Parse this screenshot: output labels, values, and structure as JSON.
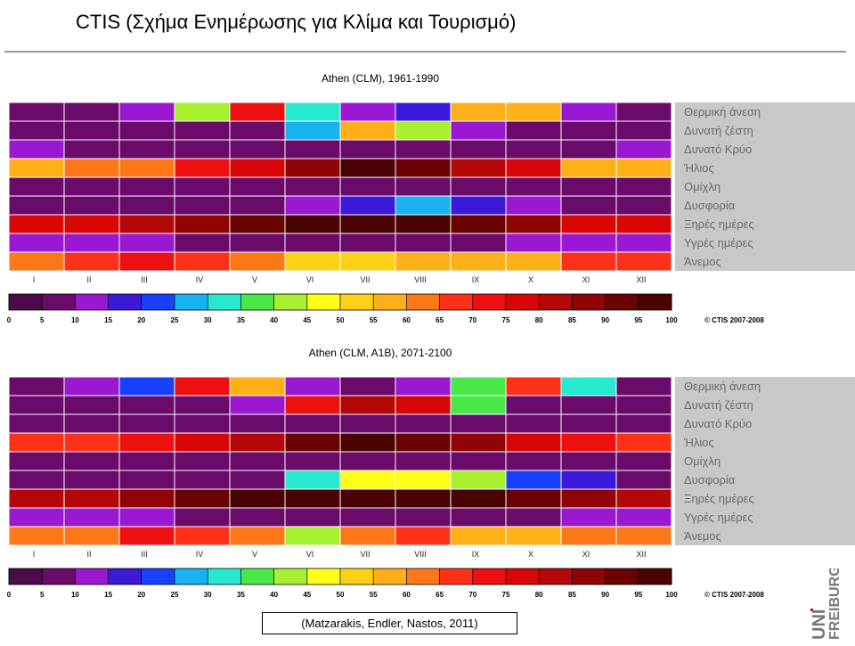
{
  "page": {
    "title": "CTIS (Σχήμα Ενημέρωσης για Κλίμα και Τουρισμό)",
    "citation": "(Matzarakis, Endler, Nastos, 2011)",
    "logo": {
      "top": "UNI",
      "bottom": "FREIBURG"
    }
  },
  "colors": {
    "scale": [
      "#4b0b4b",
      "#6a0a6a",
      "#9a18d2",
      "#3a1ad8",
      "#1840ff",
      "#18b2f0",
      "#28e8d0",
      "#48e848",
      "#a8f030",
      "#ffff18",
      "#ffd018",
      "#ffb018",
      "#ff7818",
      "#ff3018",
      "#ee1010",
      "#d80606",
      "#b40808",
      "#900404",
      "#6a0202",
      "#4a0202"
    ],
    "label_panel": "#c8c8c8",
    "label_text": "#6a6a6a"
  },
  "chart_data": [
    {
      "type": "heatmap",
      "title": "Athen (CLM), 1961-1990",
      "categories": [
        "I",
        "II",
        "III",
        "IV",
        "V",
        "VI",
        "VII",
        "VIII",
        "IX",
        "X",
        "XI",
        "XII"
      ],
      "rows": [
        "Θερμική άνεση",
        "Δυνατή ζέστη",
        "Δυνατό Κρύο",
        "Ήλιος",
        "Ομίχλη",
        "Δυσφορία",
        "Ξηρές ημέρες",
        "Υγρές ημέρες",
        "Άνεμος"
      ],
      "values": [
        [
          5,
          5,
          12,
          42,
          72,
          32,
          12,
          17,
          57,
          57,
          12,
          5
        ],
        [
          5,
          5,
          5,
          5,
          5,
          27,
          57,
          42,
          12,
          5,
          5,
          5
        ],
        [
          12,
          5,
          5,
          5,
          5,
          5,
          5,
          5,
          5,
          5,
          5,
          12
        ],
        [
          57,
          62,
          62,
          72,
          77,
          87,
          97,
          92,
          82,
          77,
          57,
          57
        ],
        [
          7,
          7,
          7,
          7,
          7,
          7,
          7,
          7,
          7,
          7,
          7,
          7
        ],
        [
          5,
          5,
          5,
          5,
          5,
          12,
          17,
          27,
          17,
          12,
          5,
          5
        ],
        [
          77,
          77,
          82,
          87,
          92,
          97,
          97,
          97,
          92,
          87,
          77,
          77
        ],
        [
          12,
          12,
          12,
          5,
          5,
          5,
          5,
          5,
          5,
          12,
          12,
          12
        ],
        [
          62,
          67,
          72,
          67,
          62,
          52,
          52,
          57,
          57,
          57,
          67,
          67
        ]
      ],
      "colorbar": {
        "ticks": [
          0,
          5,
          10,
          15,
          20,
          25,
          30,
          35,
          40,
          45,
          50,
          55,
          60,
          65,
          70,
          75,
          80,
          85,
          90,
          95,
          100
        ],
        "range": [
          0,
          100
        ]
      },
      "copyright": "© CTIS 2007-2008"
    },
    {
      "type": "heatmap",
      "title": "Athen (CLM, A1B), 2071-2100",
      "categories": [
        "I",
        "II",
        "III",
        "IV",
        "V",
        "VI",
        "VII",
        "VIII",
        "IX",
        "X",
        "XI",
        "XII"
      ],
      "rows": [
        "Θερμική άνεση",
        "Δυνατή ζέστη",
        "Δυνατό Κρύο",
        "Ήλιος",
        "Ομίχλη",
        "Δυσφορία",
        "Ξηρές ημέρες",
        "Υγρές ημέρες",
        "Άνεμος"
      ],
      "values": [
        [
          5,
          12,
          22,
          72,
          57,
          12,
          5,
          12,
          37,
          67,
          32,
          5
        ],
        [
          5,
          5,
          5,
          5,
          12,
          72,
          82,
          77,
          37,
          5,
          5,
          5
        ],
        [
          5,
          5,
          5,
          5,
          5,
          5,
          5,
          5,
          5,
          5,
          5,
          5
        ],
        [
          67,
          67,
          72,
          77,
          82,
          92,
          97,
          92,
          87,
          77,
          72,
          67
        ],
        [
          5,
          5,
          5,
          5,
          5,
          5,
          5,
          5,
          5,
          5,
          5,
          5
        ],
        [
          5,
          5,
          5,
          5,
          7,
          32,
          47,
          47,
          42,
          22,
          17,
          5
        ],
        [
          82,
          82,
          87,
          92,
          97,
          97,
          97,
          97,
          97,
          92,
          87,
          82
        ],
        [
          12,
          12,
          12,
          5,
          5,
          5,
          5,
          5,
          5,
          5,
          12,
          12
        ],
        [
          62,
          62,
          72,
          67,
          62,
          42,
          62,
          67,
          57,
          57,
          62,
          62
        ]
      ],
      "colorbar": {
        "ticks": [
          0,
          5,
          10,
          15,
          20,
          25,
          30,
          35,
          40,
          45,
          50,
          55,
          60,
          65,
          70,
          75,
          80,
          85,
          90,
          95,
          100
        ],
        "range": [
          0,
          100
        ]
      },
      "copyright": "© CTIS 2007-2008"
    }
  ]
}
